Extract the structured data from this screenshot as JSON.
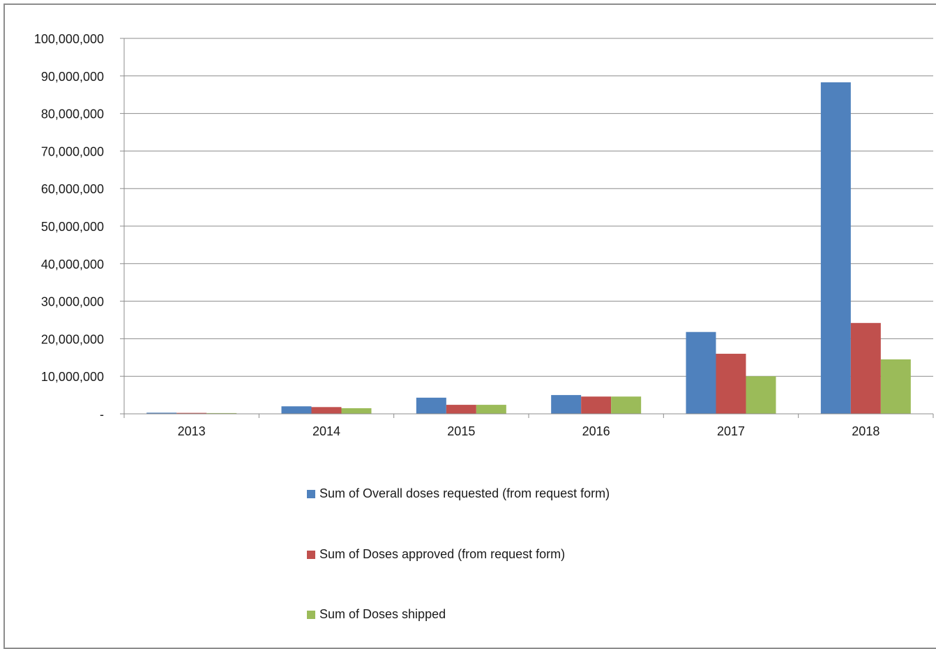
{
  "chart_data": {
    "type": "bar",
    "title": "",
    "xlabel": "",
    "ylabel": "",
    "categories": [
      "2013",
      "2014",
      "2015",
      "2016",
      "2017",
      "2018"
    ],
    "ylim": [
      0,
      100000000
    ],
    "yticks": [
      0,
      10000000,
      20000000,
      30000000,
      40000000,
      50000000,
      60000000,
      70000000,
      80000000,
      90000000,
      100000000
    ],
    "ytick_labels": [
      "-",
      "10,000,000",
      "20,000,000",
      "30,000,000",
      "40,000,000",
      "50,000,000",
      "60,000,000",
      "70,000,000",
      "80,000,000",
      "90,000,000",
      "100,000,000"
    ],
    "grid": true,
    "legend_position": "bottom",
    "series": [
      {
        "name": "Sum of Overall doses requested (from request form)",
        "color": "#4F81BD",
        "values": [
          300000,
          2000000,
          4300000,
          5000000,
          21800000,
          88300000
        ]
      },
      {
        "name": "Sum of Doses approved (from request form)",
        "color": "#C0504D",
        "values": [
          250000,
          1800000,
          2400000,
          4600000,
          16000000,
          24200000
        ]
      },
      {
        "name": "Sum of Doses shipped",
        "color": "#9BBB59",
        "values": [
          200000,
          1500000,
          2400000,
          4600000,
          10000000,
          14500000
        ]
      }
    ]
  }
}
